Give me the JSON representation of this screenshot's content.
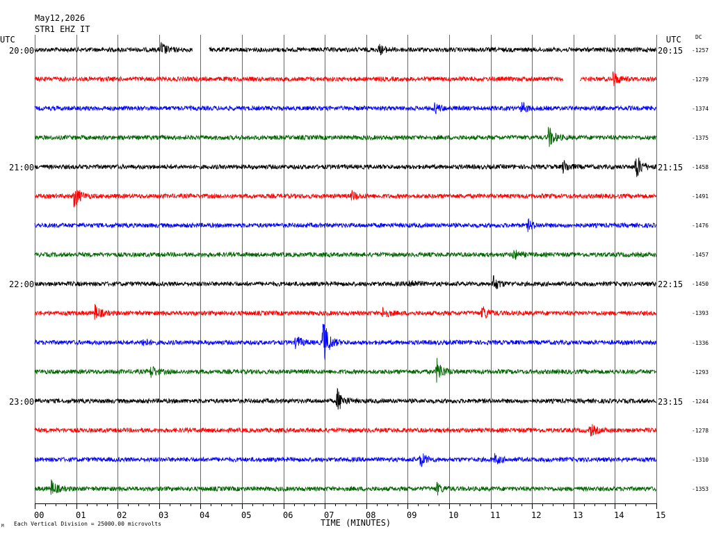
{
  "header": {
    "date": "May12,2026",
    "station": "STR1 EHZ IT"
  },
  "labels": {
    "utc_left": "UTC",
    "utc_right": "UTC",
    "dc": "DC",
    "xaxis": "TIME (MINUTES)",
    "footer": "Each Vertical Division = 25000.00 microvolts",
    "corner": "M"
  },
  "colors": {
    "trace_cycle": [
      "#000000",
      "#ff0000",
      "#0000ff",
      "#006400"
    ],
    "grid": "#000000",
    "background": "#ffffff"
  },
  "chart_data": {
    "type": "line",
    "title": "May12,2026 STR1 EHZ IT",
    "xlabel": "TIME (MINUTES)",
    "xlim": [
      0,
      15
    ],
    "x_ticks": [
      "00",
      "01",
      "02",
      "03",
      "04",
      "05",
      "06",
      "07",
      "08",
      "09",
      "10",
      "11",
      "12",
      "13",
      "14",
      "15"
    ],
    "rows": 16,
    "row_minutes": 15,
    "left_time_labels": [
      {
        "row": 0,
        "label": "20:00"
      },
      {
        "row": 4,
        "label": "21:00"
      },
      {
        "row": 8,
        "label": "22:00"
      },
      {
        "row": 12,
        "label": "23:00"
      }
    ],
    "right_time_labels": [
      {
        "row": 0,
        "label": "20:15"
      },
      {
        "row": 4,
        "label": "21:15"
      },
      {
        "row": 8,
        "label": "22:15"
      },
      {
        "row": 12,
        "label": "23:15"
      }
    ],
    "dc_offsets": [
      "-1257",
      "-1279",
      "-1374",
      "-1375",
      "-1458",
      "-1491",
      "-1476",
      "-1457",
      "-1450",
      "-1393",
      "-1336",
      "-1293",
      "-1244",
      "-1278",
      "-1310",
      "-1353"
    ],
    "data_gaps": [
      {
        "row": 0,
        "start_min": 3.8,
        "end_min": 4.2
      },
      {
        "row": 1,
        "start_min": 12.75,
        "end_min": 13.15
      }
    ],
    "events": [
      {
        "row": 0,
        "minute": 3.05,
        "amplitude": 0.5
      },
      {
        "row": 0,
        "minute": 8.3,
        "amplitude": 0.35
      },
      {
        "row": 1,
        "minute": 13.95,
        "amplitude": 0.55
      },
      {
        "row": 2,
        "minute": 9.65,
        "amplitude": 0.35
      },
      {
        "row": 2,
        "minute": 11.75,
        "amplitude": 0.4
      },
      {
        "row": 3,
        "minute": 12.4,
        "amplitude": 0.8
      },
      {
        "row": 4,
        "minute": 12.75,
        "amplitude": 0.45
      },
      {
        "row": 4,
        "minute": 14.5,
        "amplitude": 1.0
      },
      {
        "row": 5,
        "minute": 0.95,
        "amplitude": 0.9
      },
      {
        "row": 5,
        "minute": 7.65,
        "amplitude": 0.3
      },
      {
        "row": 6,
        "minute": 11.9,
        "amplitude": 0.35
      },
      {
        "row": 7,
        "minute": 11.55,
        "amplitude": 0.35
      },
      {
        "row": 8,
        "minute": 11.05,
        "amplitude": 0.6
      },
      {
        "row": 8,
        "minute": 9.05,
        "amplitude": 0.35
      },
      {
        "row": 9,
        "minute": 1.45,
        "amplitude": 0.55
      },
      {
        "row": 9,
        "minute": 8.4,
        "amplitude": 0.4
      },
      {
        "row": 9,
        "minute": 10.8,
        "amplitude": 0.55
      },
      {
        "row": 10,
        "minute": 6.3,
        "amplitude": 0.5
      },
      {
        "row": 10,
        "minute": 6.95,
        "amplitude": 1.8
      },
      {
        "row": 10,
        "minute": 2.6,
        "amplitude": 0.3
      },
      {
        "row": 11,
        "minute": 2.8,
        "amplitude": 0.45
      },
      {
        "row": 11,
        "minute": 9.7,
        "amplitude": 0.9
      },
      {
        "row": 12,
        "minute": 7.3,
        "amplitude": 0.85
      },
      {
        "row": 13,
        "minute": 13.4,
        "amplitude": 0.45
      },
      {
        "row": 14,
        "minute": 9.3,
        "amplitude": 0.55
      },
      {
        "row": 14,
        "minute": 11.1,
        "amplitude": 0.35
      },
      {
        "row": 15,
        "minute": 0.4,
        "amplitude": 0.55
      },
      {
        "row": 15,
        "minute": 9.7,
        "amplitude": 0.4
      }
    ]
  }
}
